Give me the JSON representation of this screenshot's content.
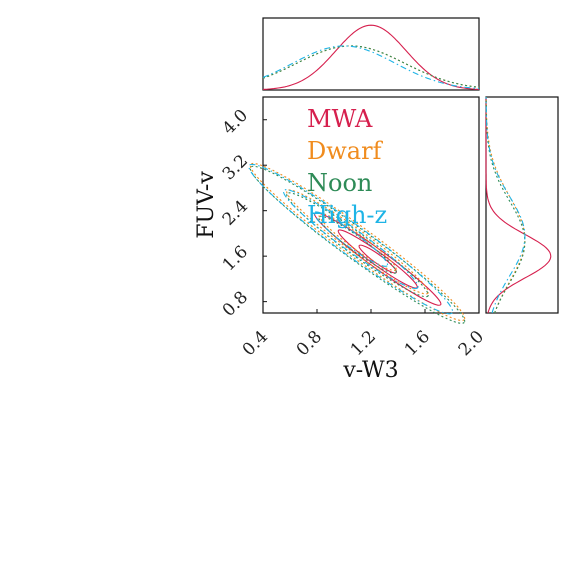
{
  "chart_data": {
    "type": "corner-contour",
    "xlabel": "v-W3",
    "ylabel": "FUV-v",
    "x_ticks": [
      "0.4",
      "0.8",
      "1.2",
      "1.6",
      "2.0"
    ],
    "y_ticks": [
      "0.8",
      "1.6",
      "2.4",
      "3.2",
      "4.0"
    ],
    "xlim": [
      0.4,
      2.0
    ],
    "ylim": [
      0.6,
      4.4
    ],
    "legend_placement": "upper-left",
    "series": [
      {
        "name": "MWA",
        "color": "#d6204e",
        "dash": "solid",
        "x_peak": 1.2,
        "y_peak": 1.6,
        "x_width": 0.26,
        "y_width": 0.38
      },
      {
        "name": "Dwarf",
        "color": "#f08c1e",
        "dash": "dotted",
        "x_peak": 1.05,
        "y_peak": 1.9,
        "x_width": 0.4,
        "y_width": 0.75
      },
      {
        "name": "Noon",
        "color": "#2e8b57",
        "dash": "dotted",
        "x_peak": 1.05,
        "y_peak": 1.85,
        "x_width": 0.4,
        "y_width": 0.72
      },
      {
        "name": "High-z",
        "color": "#1eb4e6",
        "dash": "dashdot",
        "x_peak": 1.0,
        "y_peak": 1.95,
        "x_width": 0.38,
        "y_width": 0.7
      }
    ]
  }
}
